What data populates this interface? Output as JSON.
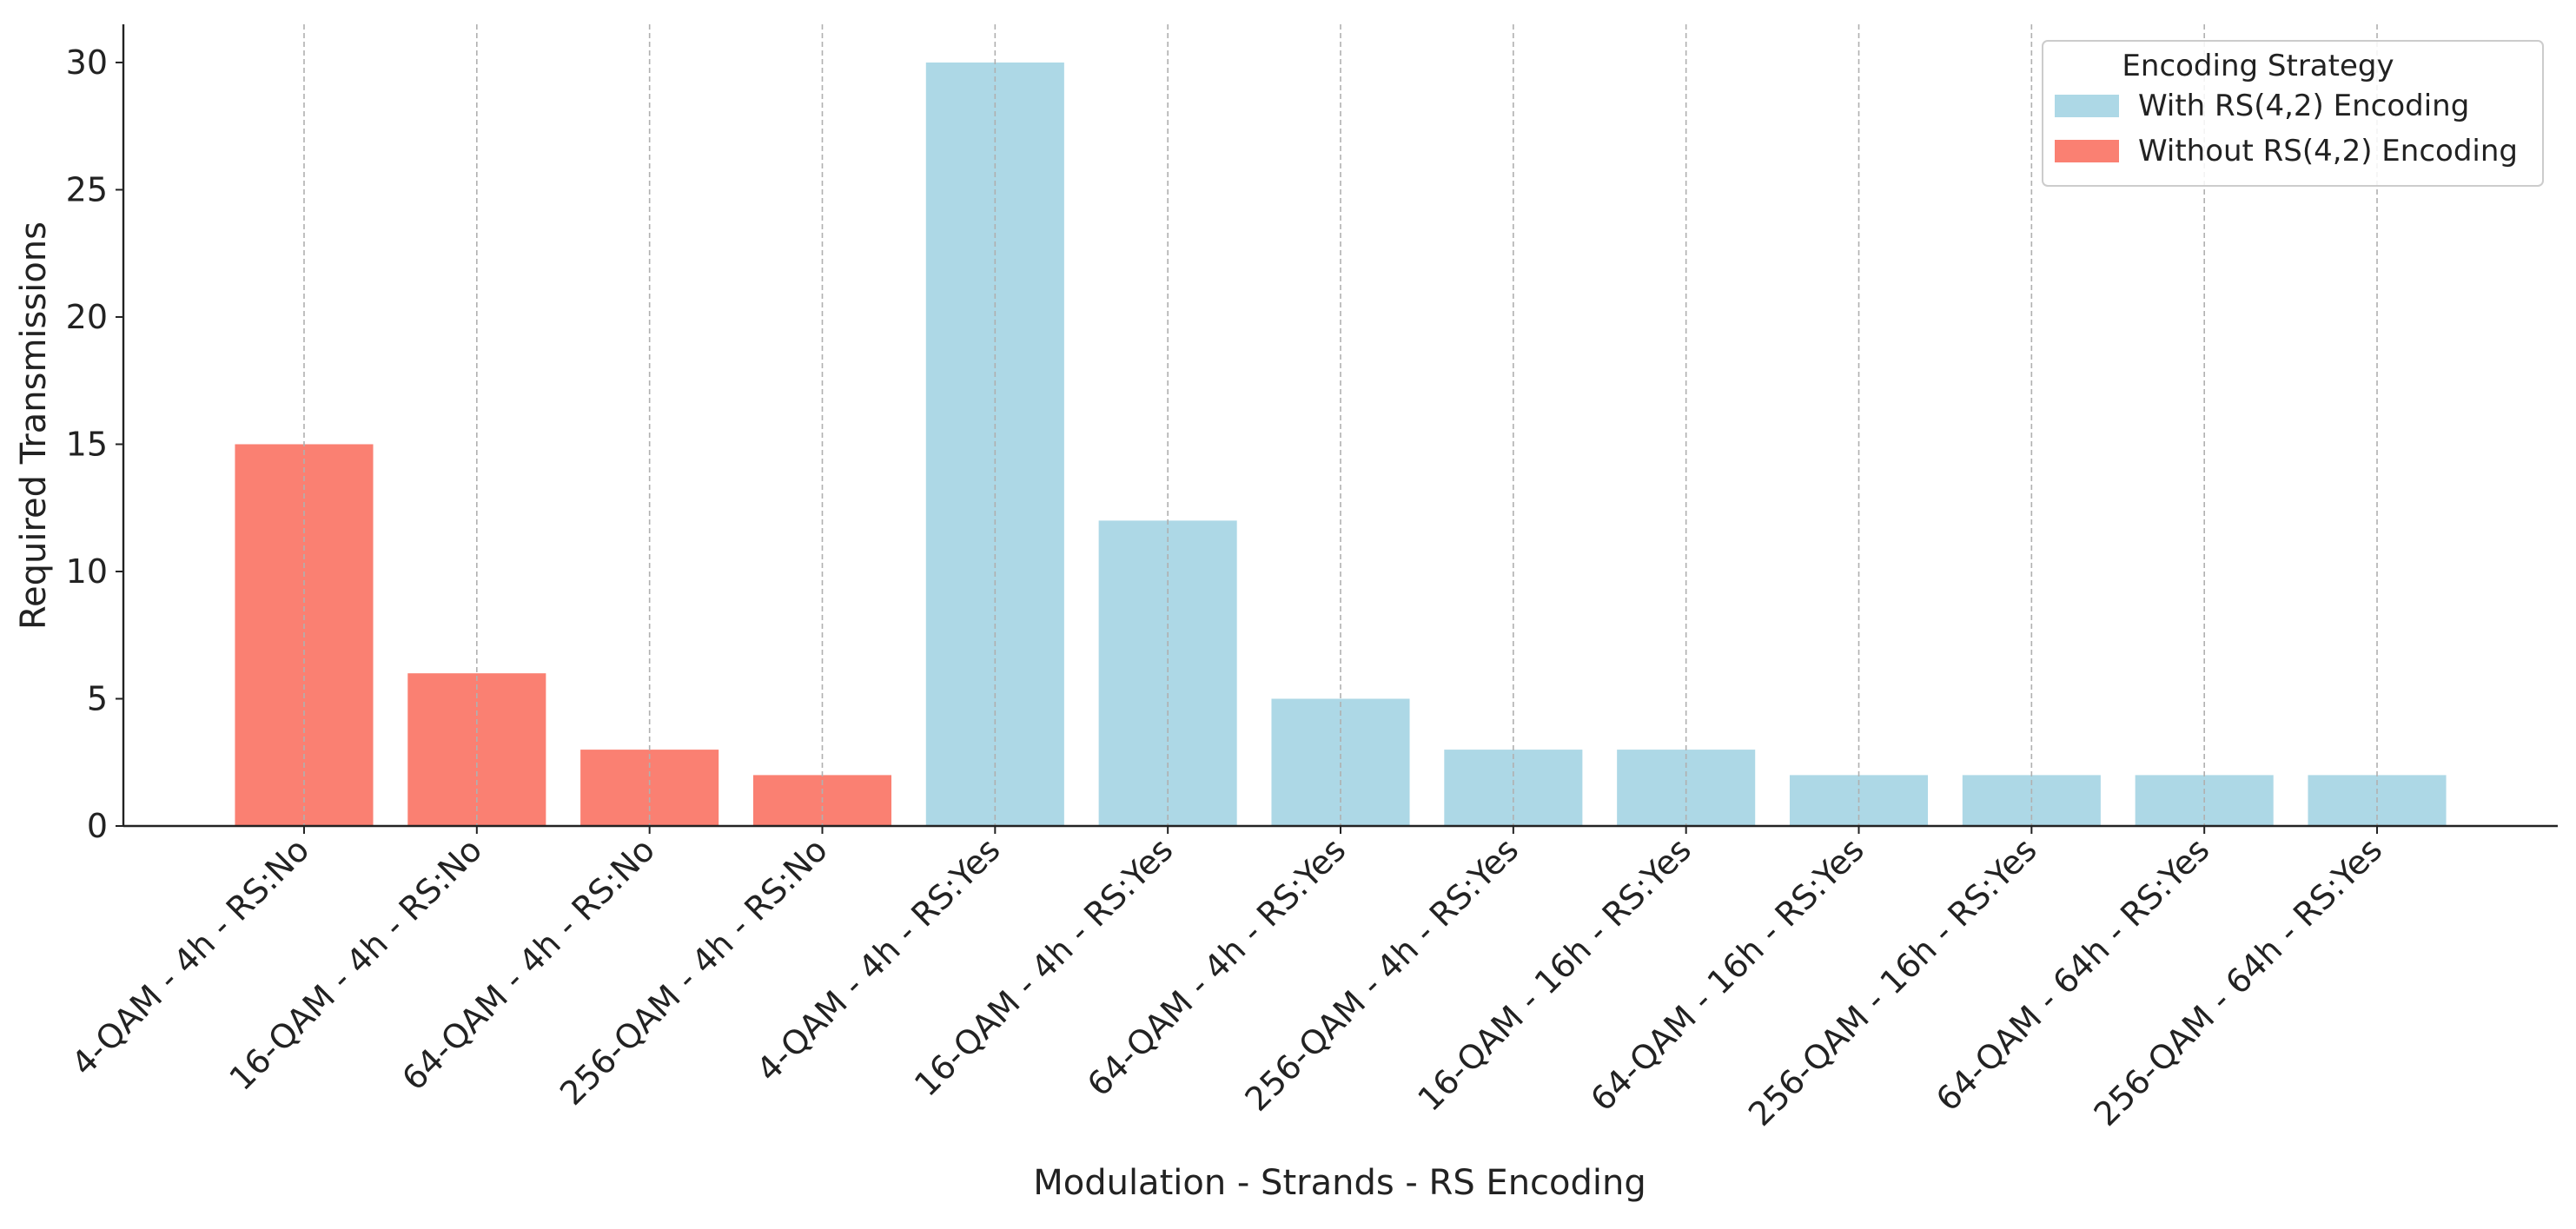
{
  "chart_data": {
    "type": "bar",
    "xlabel": "Modulation - Strands - RS Encoding",
    "ylabel": "Required Transmissions",
    "categories": [
      "4-QAM - 4h - RS:No",
      "16-QAM - 4h - RS:No",
      "64-QAM - 4h - RS:No",
      "256-QAM - 4h - RS:No",
      "4-QAM - 4h - RS:Yes",
      "16-QAM - 4h - RS:Yes",
      "64-QAM - 4h - RS:Yes",
      "256-QAM - 4h - RS:Yes",
      "16-QAM - 16h - RS:Yes",
      "64-QAM - 16h - RS:Yes",
      "256-QAM - 16h - RS:Yes",
      "64-QAM - 64h - RS:Yes",
      "256-QAM - 64h - RS:Yes"
    ],
    "series": [
      {
        "name": "With RS(4,2) Encoding",
        "color": "#add8e6",
        "values": [
          null,
          null,
          null,
          null,
          30,
          12,
          5,
          3,
          3,
          2,
          2,
          2,
          2
        ]
      },
      {
        "name": "Without RS(4,2) Encoding",
        "color": "#fa8072",
        "values": [
          15,
          6,
          3,
          2,
          null,
          null,
          null,
          null,
          null,
          null,
          null,
          null,
          null
        ]
      }
    ],
    "legend_title": "Encoding Strategy",
    "legend": "upper right",
    "ylim": [
      0,
      31.5
    ],
    "yticks": [
      0,
      5,
      10,
      15,
      20,
      25,
      30
    ],
    "grid": true
  }
}
